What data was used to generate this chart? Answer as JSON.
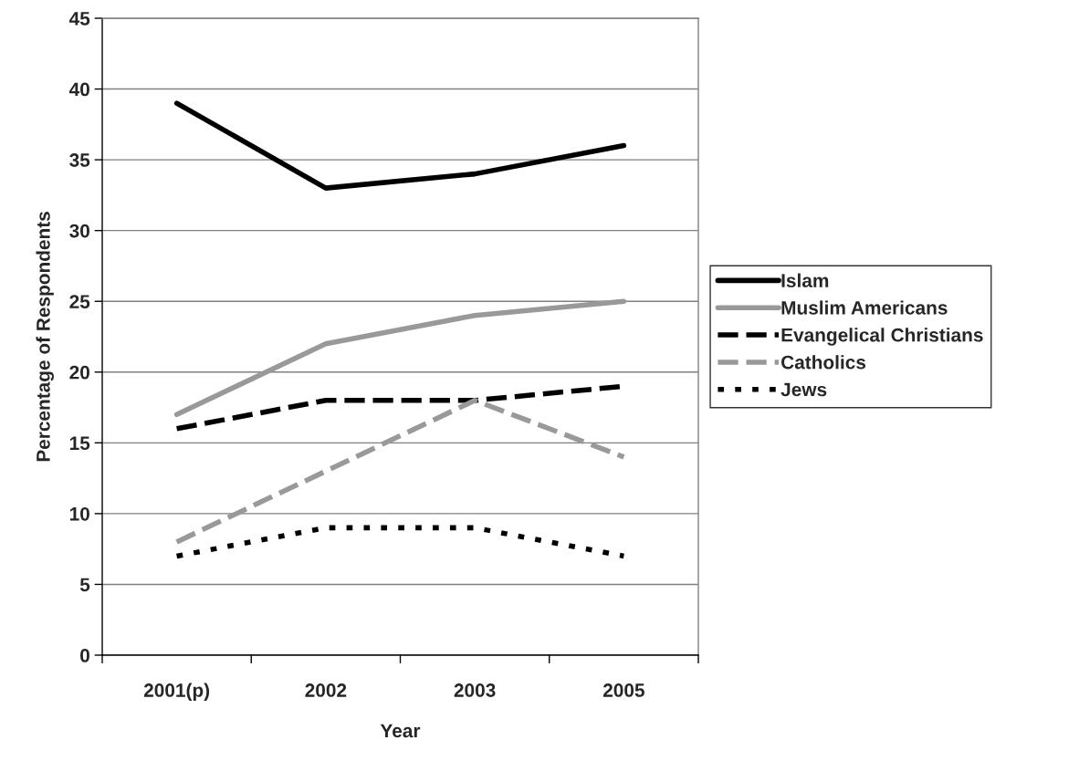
{
  "chart_data": {
    "type": "line",
    "xlabel": "Year",
    "ylabel": "Percentage of Respondents",
    "categories": [
      "2001(p)",
      "2002",
      "2003",
      "2005"
    ],
    "series": [
      {
        "name": "Islam",
        "color": "#000000",
        "line_style": "solid",
        "values": [
          39,
          33,
          34,
          36
        ]
      },
      {
        "name": "Muslim Americans",
        "color": "#999999",
        "line_style": "solid",
        "values": [
          17,
          22,
          24,
          25
        ]
      },
      {
        "name": "Evangelical Christians",
        "color": "#000000",
        "line_style": "dashed",
        "values": [
          16,
          18,
          18,
          19
        ]
      },
      {
        "name": "Catholics",
        "color": "#999999",
        "line_style": "dashed",
        "values": [
          8,
          13,
          18,
          14
        ]
      },
      {
        "name": "Jews",
        "color": "#000000",
        "line_style": "dotted",
        "values": [
          7,
          9,
          9,
          7
        ]
      }
    ],
    "ylim": [
      0,
      45
    ],
    "yticks": [
      0,
      5,
      10,
      15,
      20,
      25,
      30,
      35,
      40,
      45
    ],
    "grid": "y",
    "legend": "right",
    "marker": "none"
  }
}
